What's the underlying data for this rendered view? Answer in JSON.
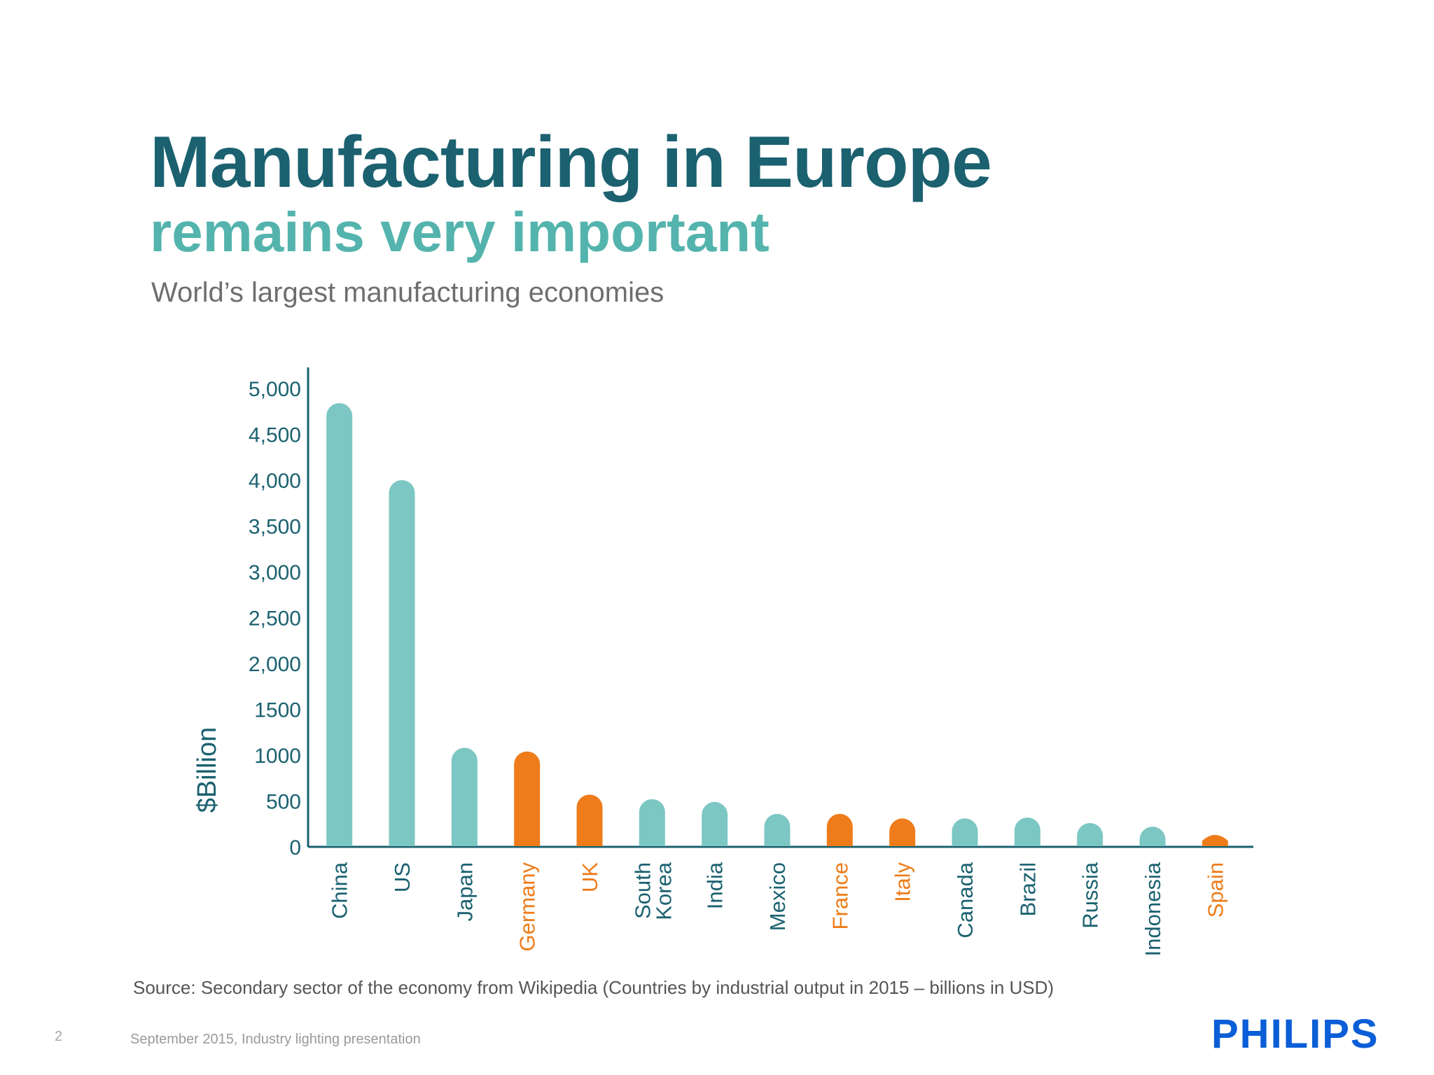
{
  "slide": {
    "title": "Manufacturing in Europe",
    "subtitle": "remains very important",
    "caption": "World’s largest manufacturing economies",
    "source": "Source: Secondary sector of the economy from Wikipedia (Countries by industrial output in 2015 – billions in USD)",
    "page_number": "2",
    "footer": "September 2015, Industry lighting presentation",
    "logo": "PHILIPS"
  },
  "colors": {
    "teal": "#7cc7c3",
    "orange": "#ee7c1a",
    "axis": "#1b6170",
    "tick_text": "#1b6170"
  },
  "chart_data": {
    "type": "bar",
    "ylabel": "$Billion",
    "ylim": [
      0,
      5000
    ],
    "y_ticks": [
      0,
      500,
      1000,
      1500,
      2000,
      2500,
      3000,
      3500,
      4000,
      4500,
      5000
    ],
    "y_tick_labels": [
      "0",
      "500",
      "1000",
      "1500",
      "2,000",
      "2,500",
      "3,000",
      "3,500",
      "4,000",
      "4,500",
      "5,000"
    ],
    "grid": false,
    "categories": [
      "China",
      "US",
      "Japan",
      "Germany",
      "UK",
      "South Korea",
      "India",
      "Mexico",
      "France",
      "Italy",
      "Canada",
      "Brazil",
      "Russia",
      "Indonesia",
      "Spain"
    ],
    "values": [
      4840,
      4000,
      1080,
      1040,
      570,
      520,
      490,
      360,
      360,
      310,
      310,
      320,
      260,
      220,
      130
    ],
    "bar_colors": [
      "teal",
      "teal",
      "teal",
      "orange",
      "orange",
      "teal",
      "teal",
      "teal",
      "orange",
      "orange",
      "teal",
      "teal",
      "teal",
      "teal",
      "orange"
    ]
  }
}
